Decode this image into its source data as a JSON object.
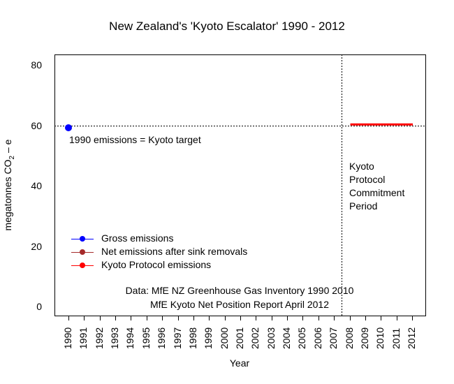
{
  "chart_data": {
    "type": "line",
    "title": "New Zealand's 'Kyoto Escalator' 1990 - 2012",
    "xlabel": "Year",
    "ylabel": "megatonnes CO2 – e",
    "ylabel_parts": {
      "pre": "megatonnes CO",
      "sub": "2",
      "post": " – e"
    },
    "ylim": [
      0,
      80
    ],
    "yticks": [
      0,
      20,
      40,
      60,
      80
    ],
    "x": [
      1990,
      1991,
      1992,
      1993,
      1994,
      1995,
      1996,
      1997,
      1998,
      1999,
      2000,
      2001,
      2002,
      2003,
      2004,
      2005,
      2006,
      2007,
      2008,
      2009,
      2010,
      2011,
      2012
    ],
    "series": [
      {
        "name": "Gross emissions",
        "color": "#0000ff",
        "points": [
          {
            "x": 1990,
            "y": 59.2
          }
        ]
      },
      {
        "name": "Net emissions after sink removals",
        "color": "#a52a2a",
        "points": []
      },
      {
        "name": "Kyoto Protocol emissions",
        "color": "#ff0000",
        "segments": [
          {
            "x0": 2008,
            "x1": 2012,
            "y": 60.3
          }
        ]
      }
    ],
    "reference_lines": [
      {
        "orientation": "horizontal",
        "y": 60,
        "style": "dotted",
        "color": "#000000"
      },
      {
        "orientation": "vertical",
        "x": 2007.5,
        "style": "dotted",
        "color": "#000000"
      }
    ],
    "annotations": [
      {
        "text": "1990 emissions = Kyoto target",
        "x": 1990,
        "y": 55
      },
      {
        "text": "Kyoto\nProtocol\nCommitment\nPeriod",
        "lines": [
          "Kyoto",
          "Protocol",
          "Commitment",
          "Period"
        ],
        "x": 2008,
        "y": 45
      },
      {
        "text": "Data: MfE NZ Greenhouse Gas Inventory 1990 2010"
      },
      {
        "text": "MfE Kyoto Net Position Report April 2012"
      }
    ],
    "legend_position": "bottom-left inside",
    "grid": false
  },
  "labels": {
    "target_note": "1990 emissions = Kyoto target",
    "kcp": [
      "Kyoto",
      "Protocol",
      "Commitment",
      "Period"
    ],
    "source_line1": "Data: MfE NZ Greenhouse Gas Inventory 1990 2010",
    "source_line2": "MfE Kyoto Net Position Report April 2012"
  }
}
